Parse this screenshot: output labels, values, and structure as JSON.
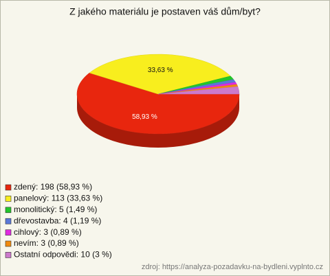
{
  "chart_data": {
    "type": "pie",
    "title": "Z jakého materiálu je postaven váš dům/byt?",
    "categories": [
      "zdený: 198 (58,93 %)",
      "panelový: 113 (33,63 %)",
      "monolitický: 5 (1,49 %)",
      "dřevostavba: 4 (1,19 %)",
      "cihlový: 3 (0,89 %)",
      "nevím: 3 (0,89 %)",
      "Ostatní odpovědi: 10 (3 %)"
    ],
    "values": [
      58.93,
      33.63,
      1.49,
      1.19,
      0.89,
      0.89,
      3
    ],
    "value_labels": [
      "58,93 %",
      "33,63 %",
      null,
      null,
      null,
      null,
      null
    ],
    "colors": [
      "#e8260e",
      "#f8ee1e",
      "#22c62a",
      "#5a78d8",
      "#e02ae0",
      "#f08a10",
      "#cc7acc"
    ],
    "source": "zdroj: https://analyza-pozadavku-na-bydleni.vyplnto.cz"
  }
}
